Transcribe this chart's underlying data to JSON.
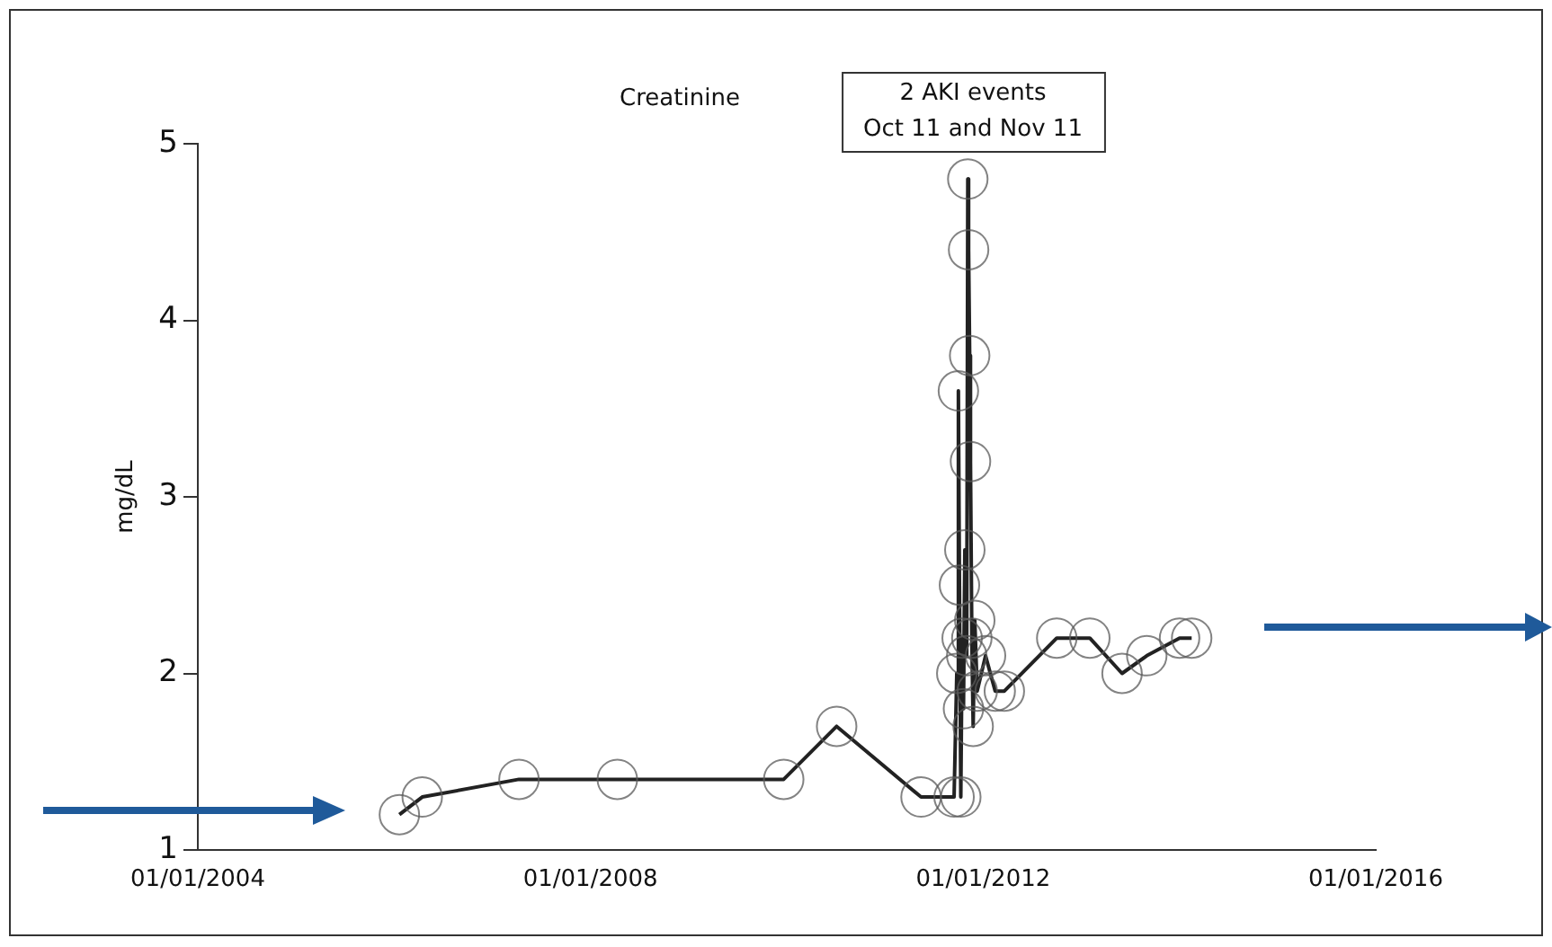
{
  "chart_data": {
    "type": "line",
    "title": "Creatinine",
    "ylabel": "mg/dL",
    "annotations": [
      "2 AKI events\nOct 11 and Nov 11"
    ],
    "marker": "circle",
    "line_style": "solid",
    "grid": false,
    "legend": false,
    "xlim": [
      "2004-01-01",
      "2016-01-01"
    ],
    "xticks": [
      {
        "value": "2004-01-01",
        "label": "01/01/2004"
      },
      {
        "value": "2008-01-01",
        "label": "01/01/2008"
      },
      {
        "value": "2012-01-01",
        "label": "01/01/2012"
      },
      {
        "value": "2016-01-01",
        "label": "01/01/2016"
      }
    ],
    "ylim": [
      1,
      5
    ],
    "yticks": [
      1,
      2,
      3,
      4,
      5
    ],
    "series": [
      {
        "color": "#222222",
        "x": [
          "2006-01-20",
          "2006-04-15",
          "2007-04-10",
          "2008-04-10",
          "2009-12-20",
          "2010-07-05",
          "2011-05-15",
          "2011-09-15",
          "2011-09-25",
          "2011-10-01",
          "2011-10-05",
          "2011-10-10",
          "2011-10-15",
          "2011-10-20",
          "2011-10-25",
          "2011-11-01",
          "2011-11-05",
          "2011-11-08",
          "2011-11-12",
          "2011-11-15",
          "2011-11-20",
          "2011-11-25",
          "2011-12-01",
          "2011-12-10",
          "2012-01-10",
          "2012-02-15",
          "2012-03-20",
          "2012-10-01",
          "2013-02-01",
          "2013-06-01",
          "2013-09-01",
          "2014-01-01",
          "2014-02-15"
        ],
        "values": [
          1.2,
          1.3,
          1.4,
          1.4,
          1.4,
          1.7,
          1.3,
          1.3,
          2.0,
          3.6,
          2.5,
          1.3,
          2.2,
          1.8,
          2.7,
          2.1,
          4.8,
          4.4,
          3.8,
          3.2,
          2.2,
          1.7,
          2.3,
          1.9,
          2.1,
          1.9,
          1.9,
          2.2,
          2.2,
          2.0,
          2.1,
          2.2,
          2.2
        ]
      }
    ]
  }
}
